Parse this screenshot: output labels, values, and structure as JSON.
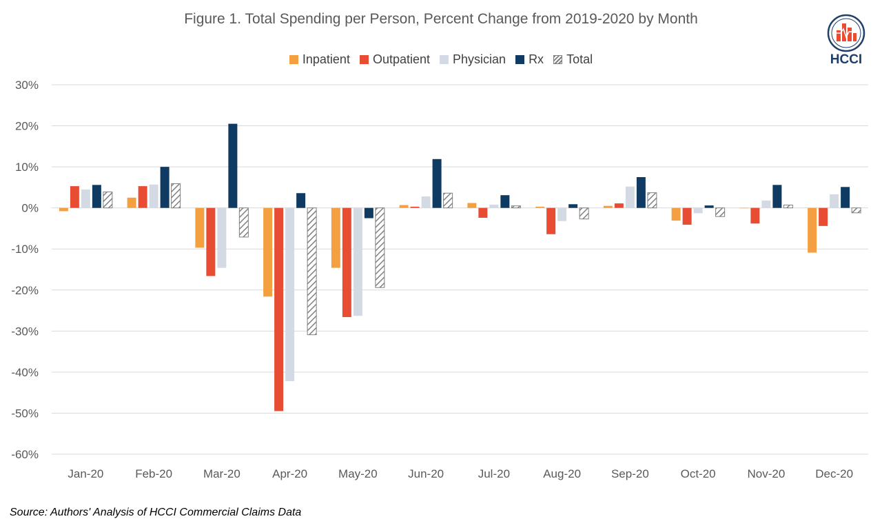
{
  "chart_data": {
    "type": "bar",
    "title": "Figure 1. Total Spending per Person, Percent Change from 2019-2020 by Month",
    "categories": [
      "Jan-20",
      "Feb-20",
      "Mar-20",
      "Apr-20",
      "May-20",
      "Jun-20",
      "Jul-20",
      "Aug-20",
      "Sep-20",
      "Oct-20",
      "Nov-20",
      "Dec-20"
    ],
    "series": [
      {
        "name": "Inpatient",
        "color": "#f5a040",
        "pattern": "solid",
        "values": [
          -0.8,
          2.5,
          -9.7,
          -21.6,
          -14.6,
          0.7,
          1.2,
          0.3,
          0.5,
          -3.1,
          0.0,
          -10.9
        ]
      },
      {
        "name": "Outpatient",
        "color": "#e84c33",
        "pattern": "solid",
        "values": [
          5.3,
          5.3,
          -16.6,
          -49.5,
          -26.6,
          0.3,
          -2.4,
          -6.4,
          1.1,
          -4.1,
          -3.8,
          -4.4
        ]
      },
      {
        "name": "Physician",
        "color": "#d3dae3",
        "pattern": "solid",
        "values": [
          4.5,
          5.7,
          -14.6,
          -42.2,
          -26.3,
          2.8,
          0.8,
          -3.2,
          5.2,
          -1.3,
          1.8,
          3.3
        ]
      },
      {
        "name": "Rx",
        "color": "#0f3a62",
        "pattern": "solid",
        "values": [
          5.6,
          10.0,
          20.5,
          3.6,
          -2.5,
          11.9,
          3.1,
          0.9,
          7.5,
          0.6,
          5.6,
          5.1
        ]
      },
      {
        "name": "Total",
        "color": "#7f7f7f",
        "pattern": "hatched",
        "values": [
          3.9,
          5.9,
          -7.1,
          -30.9,
          -19.4,
          3.6,
          0.5,
          -2.7,
          3.7,
          -2.1,
          0.7,
          -1.2
        ]
      }
    ],
    "ylim": [
      -60,
      30
    ],
    "yticks": [
      "30%",
      "20%",
      "10%",
      "0%",
      "-10%",
      "-20%",
      "-30%",
      "-40%",
      "-50%",
      "-60%"
    ],
    "ytick_values": [
      30,
      20,
      10,
      0,
      -10,
      -20,
      -30,
      -40,
      -50,
      -60
    ],
    "grid": true,
    "legend_position": "top-center"
  },
  "logo": {
    "text": "HCCI",
    "color": "#1f3f6b",
    "accent": "#e84c33"
  },
  "source_note": "Source: Authors' Analysis of HCCI Commercial Claims Data"
}
